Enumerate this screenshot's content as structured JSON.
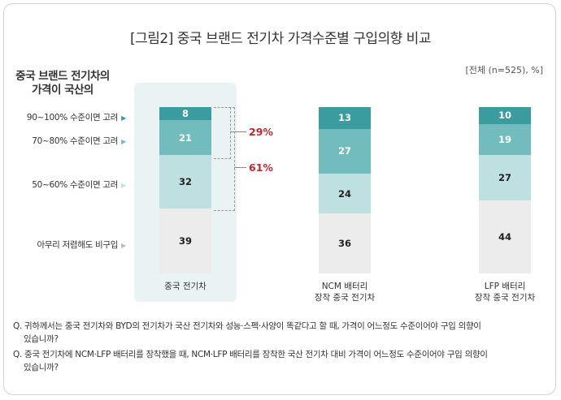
{
  "title": "[그림2] 중국 브랜드 전기차 가격수준별 구입의향 비교",
  "unit_note": "[전체 (n=525), %]",
  "y_axis_title_line1": "중국 브랜드 전기차의",
  "y_axis_title_line2": "가격이 국산의",
  "colors": {
    "c90": "#3a9c9f",
    "c70": "#72bcbe",
    "c50": "#bfe0e0",
    "none": "#ececec",
    "callout": "#c0282d",
    "highlight": "#e9f3f3"
  },
  "chart_data": {
    "type": "bar",
    "stacked": true,
    "categories": [
      "중국 전기차",
      "NCM 배터리\n장착 중국 전기차",
      "LFP 배터리\n장착 중국 전기차"
    ],
    "series": [
      {
        "name": "아무리 저렴해도 비구입",
        "values": [
          39,
          36,
          44
        ]
      },
      {
        "name": "50~60% 수준이면 고려",
        "values": [
          32,
          24,
          27
        ]
      },
      {
        "name": "70~80% 수준이면 고려",
        "values": [
          21,
          27,
          19
        ]
      },
      {
        "name": "90~100% 수준이면 고려",
        "values": [
          8,
          13,
          10
        ]
      }
    ],
    "annotations": [
      {
        "label": "29%",
        "covers": [
          "90~100% 수준이면 고려",
          "70~80% 수준이면 고려"
        ],
        "category": "중국 전기차"
      },
      {
        "label": "61%",
        "covers": [
          "90~100% 수준이면 고려",
          "70~80% 수준이면 고려",
          "50~60% 수준이면 고려"
        ],
        "category": "중국 전기차"
      }
    ],
    "ylim": [
      0,
      100
    ]
  },
  "category_labels": [
    {
      "line1": "중국 전기차",
      "line2": ""
    },
    {
      "line1": "NCM 배터리",
      "line2": "장착 중국 전기차"
    },
    {
      "line1": "LFP 배터리",
      "line2": "장착 중국 전기차"
    }
  ],
  "row_labels": [
    "90~100% 수준이면 고려",
    "70~80% 수준이면 고려",
    "50~60% 수준이면 고려",
    "아무리 저렴해도 비구입"
  ],
  "row_arrow": "▶",
  "callout_29": "29%",
  "callout_61": "61%",
  "notes": [
    "Q. 귀하께서는 중국 전기차와 BYD의 전기차가 국산 전기차와 성능·스펙·사양이 똑같다고 할 때, 가격이 어느정도 수준이어야 구입 의향이",
    "있습니까?",
    "Q. 중국 전기차에 NCM·LFP 배터리를 장착했을 때, NCM·LFP 배터리를 장착한 국산 전기차 대비 가격이 어느정도 수준이어야 구입 의향이",
    "있습니까?"
  ]
}
